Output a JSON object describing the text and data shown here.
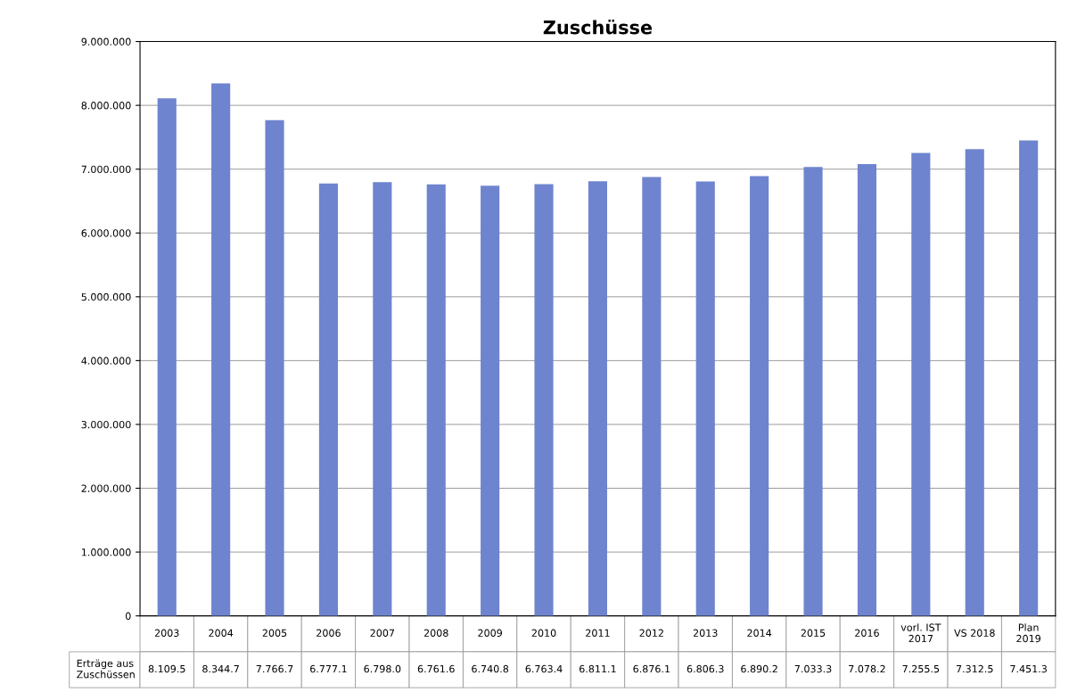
{
  "chart_data": {
    "type": "bar",
    "title": "Zuschüsse",
    "categories": [
      "2003",
      "2004",
      "2005",
      "2006",
      "2007",
      "2008",
      "2009",
      "2010",
      "2011",
      "2012",
      "2013",
      "2014",
      "2015",
      "2016",
      "vorl. IST 2017",
      "VS 2018",
      "Plan 2019"
    ],
    "series": [
      {
        "name": "Erträge aus Zuschüssen",
        "color": "#6f84cf",
        "values": [
          8109500,
          8344700,
          7766700,
          6777100,
          6798000,
          6761600,
          6740800,
          6763400,
          6811100,
          6876100,
          6806300,
          6890200,
          7033300,
          7078200,
          7255500,
          7312500,
          7451300
        ],
        "value_labels": [
          "8.109.5",
          "8.344.7",
          "7.766.7",
          "6.777.1",
          "6.798.0",
          "6.761.6",
          "6.740.8",
          "6.763.4",
          "6.811.1",
          "6.876.1",
          "6.806.3",
          "6.890.2",
          "7.033.3",
          "7.078.2",
          "7.255.5",
          "7.312.5",
          "7.451.3"
        ]
      }
    ],
    "ylim": [
      0,
      9000000
    ],
    "yticks": [
      0,
      {
        "value": 1000000,
        "label": "1.000.000"
      },
      {
        "value": 2000000,
        "label": "2.000.000"
      },
      {
        "value": 3000000,
        "label": "3.000.000"
      },
      {
        "value": 4000000,
        "label": "4.000.000"
      },
      {
        "value": 5000000,
        "label": "5.000.000"
      },
      {
        "value": 6000000,
        "label": "6.000.000"
      },
      {
        "value": 7000000,
        "label": "7.000.000"
      },
      {
        "value": 8000000,
        "label": "8.000.000"
      },
      {
        "value": 9000000,
        "label": "9.000.000"
      }
    ],
    "grid": "y",
    "tick_labels": "y"
  }
}
